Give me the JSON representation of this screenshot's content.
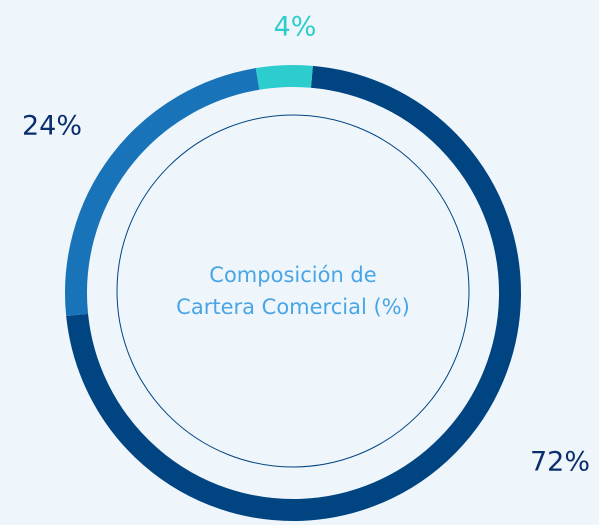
{
  "chart_data": {
    "type": "donut",
    "title": [
      "Composición de",
      "Cartera Comercial (%)"
    ],
    "categories": [
      null,
      null,
      null
    ],
    "values": [
      72,
      24,
      4
    ],
    "value_labels": [
      "72%",
      "24%",
      "4%"
    ],
    "colors": [
      "#004481",
      "#1973b8",
      "#2dcccd"
    ]
  }
}
